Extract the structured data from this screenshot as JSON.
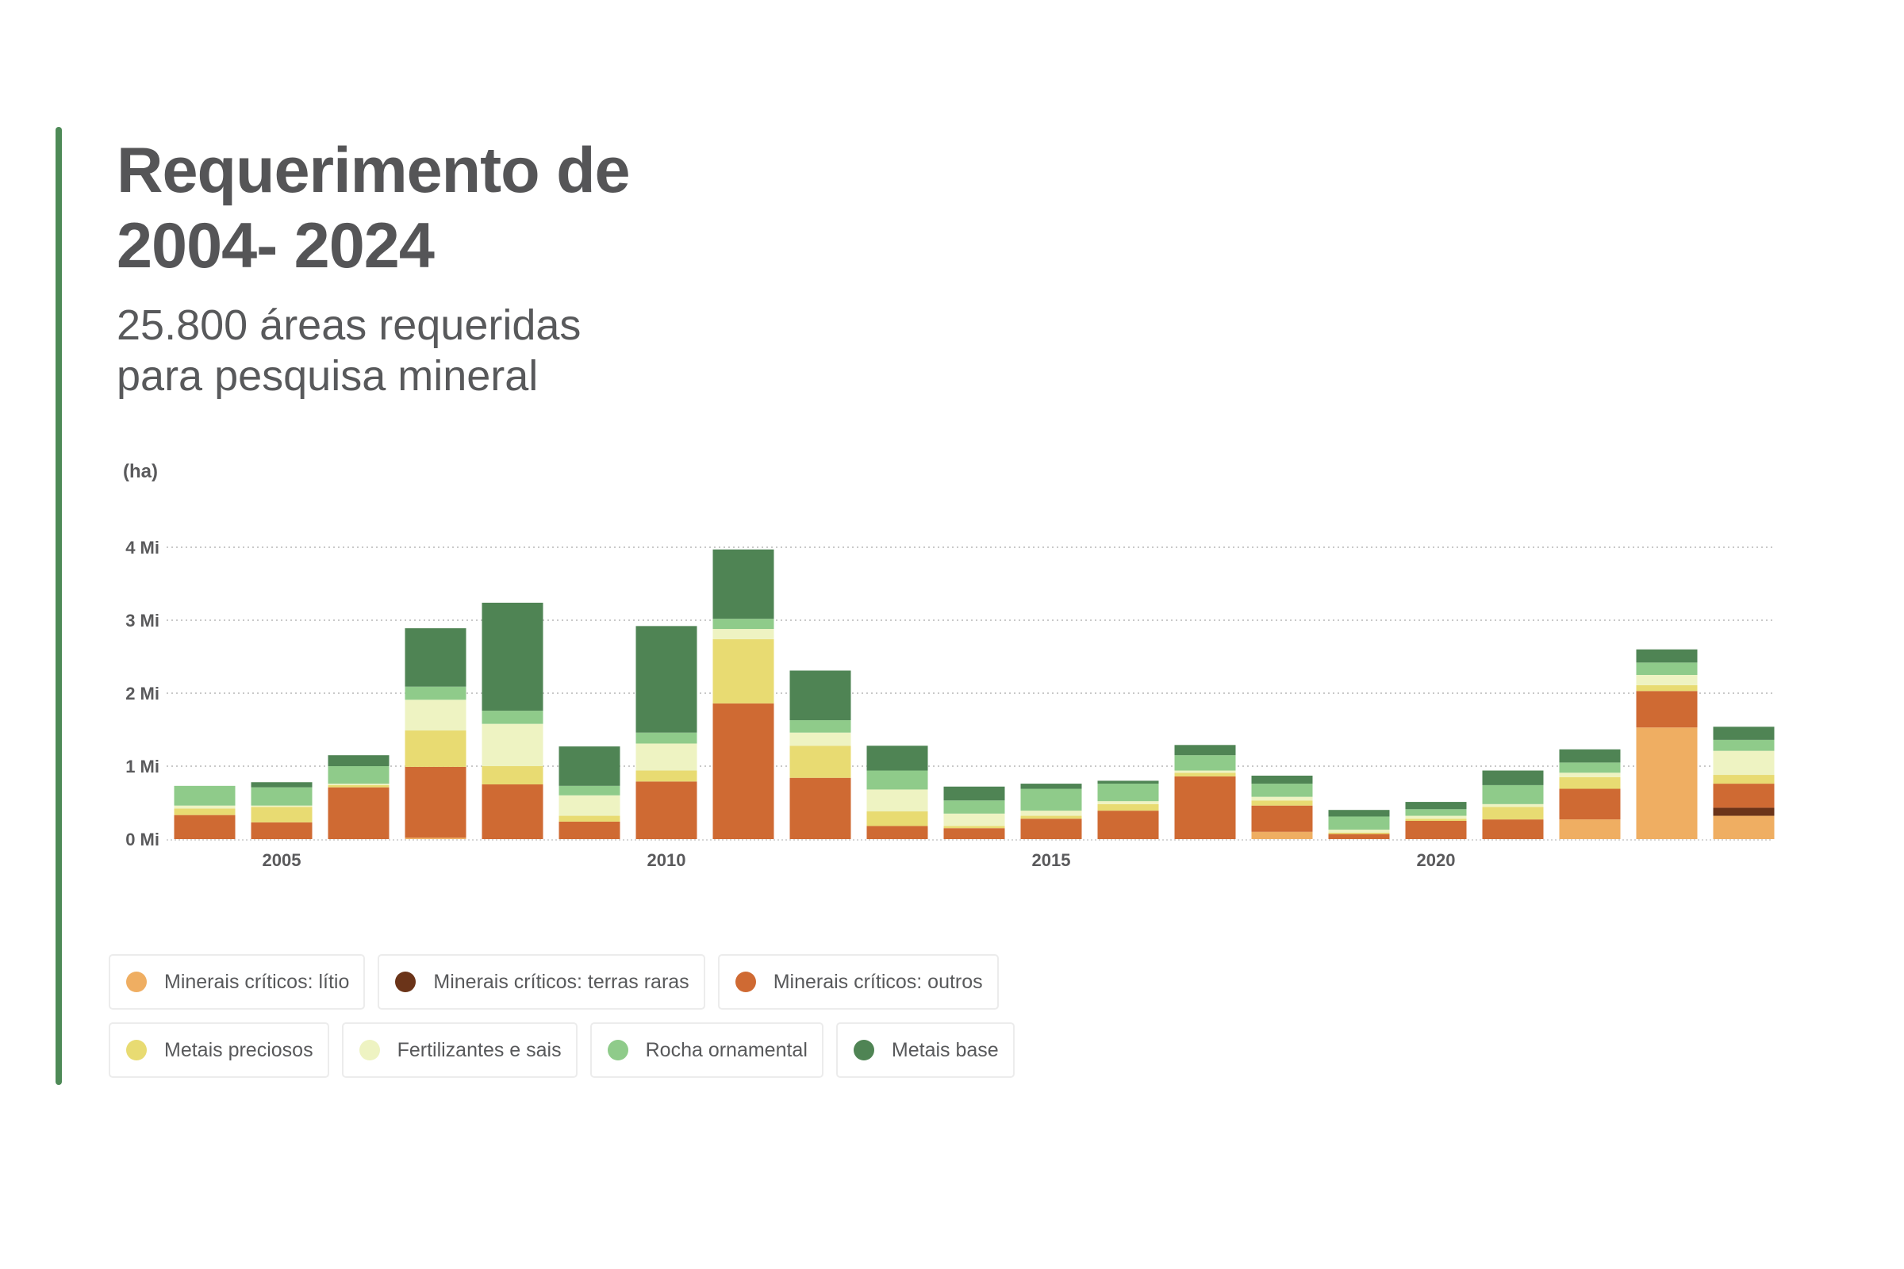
{
  "header": {
    "title_line1": "Requerimento de",
    "title_line2": "2004- 2024",
    "subtitle_line1": "25.800 áreas requeridas",
    "subtitle_line2": "para pesquisa mineral"
  },
  "chart_data": {
    "type": "bar",
    "stacked": true,
    "x": [
      2004,
      2005,
      2006,
      2007,
      2008,
      2009,
      2010,
      2011,
      2012,
      2013,
      2014,
      2015,
      2016,
      2017,
      2018,
      2019,
      2020,
      2021,
      2022,
      2023,
      2024
    ],
    "x_tick_labels": [
      "2005",
      "2010",
      "2015",
      "2020"
    ],
    "x_tick_values": [
      2005,
      2010,
      2015,
      2020
    ],
    "ylabel": "(ha)",
    "y_tick_labels": [
      "0 Mi",
      "1 Mi",
      "2 Mi",
      "3 Mi",
      "4 Mi"
    ],
    "y_tick_values": [
      0,
      1000000,
      2000000,
      3000000,
      4000000
    ],
    "ylim": [
      0,
      4000000
    ],
    "grid": true,
    "legend_position": "bottom",
    "series": [
      {
        "name": "Minerais críticos: lítio",
        "color": "#efae62",
        "values": [
          0,
          0,
          0,
          20000,
          0,
          0,
          0,
          0,
          0,
          0,
          0,
          0,
          0,
          0,
          100000,
          0,
          0,
          0,
          270000,
          1530000,
          320000
        ]
      },
      {
        "name": "Minerais críticos: terras raras",
        "color": "#6b3419",
        "values": [
          0,
          0,
          0,
          0,
          0,
          0,
          0,
          0,
          0,
          0,
          0,
          0,
          0,
          0,
          0,
          0,
          0,
          0,
          0,
          0,
          110000
        ]
      },
      {
        "name": "Minerais críticos: outros",
        "color": "#cf6a33",
        "values": [
          330000,
          230000,
          710000,
          970000,
          750000,
          240000,
          790000,
          1860000,
          840000,
          180000,
          150000,
          280000,
          390000,
          860000,
          360000,
          70000,
          250000,
          270000,
          420000,
          500000,
          330000
        ]
      },
      {
        "name": "Metais preciosos",
        "color": "#e8db72",
        "values": [
          90000,
          210000,
          30000,
          500000,
          250000,
          80000,
          150000,
          880000,
          440000,
          200000,
          30000,
          40000,
          90000,
          50000,
          70000,
          20000,
          30000,
          170000,
          160000,
          80000,
          120000
        ]
      },
      {
        "name": "Fertilizantes e sais",
        "color": "#eef3c2",
        "values": [
          40000,
          20000,
          20000,
          420000,
          580000,
          280000,
          370000,
          140000,
          180000,
          300000,
          170000,
          70000,
          40000,
          30000,
          50000,
          40000,
          40000,
          40000,
          60000,
          140000,
          330000
        ]
      },
      {
        "name": "Rocha ornamental",
        "color": "#8fcb8a",
        "values": [
          270000,
          250000,
          240000,
          180000,
          180000,
          130000,
          150000,
          140000,
          170000,
          260000,
          180000,
          300000,
          240000,
          210000,
          180000,
          180000,
          90000,
          260000,
          140000,
          170000,
          150000
        ]
      },
      {
        "name": "Metais base",
        "color": "#4f8454",
        "values": [
          0,
          70000,
          150000,
          800000,
          1480000,
          540000,
          1460000,
          950000,
          680000,
          340000,
          190000,
          70000,
          40000,
          140000,
          110000,
          90000,
          100000,
          200000,
          180000,
          180000,
          180000
        ]
      }
    ]
  }
}
